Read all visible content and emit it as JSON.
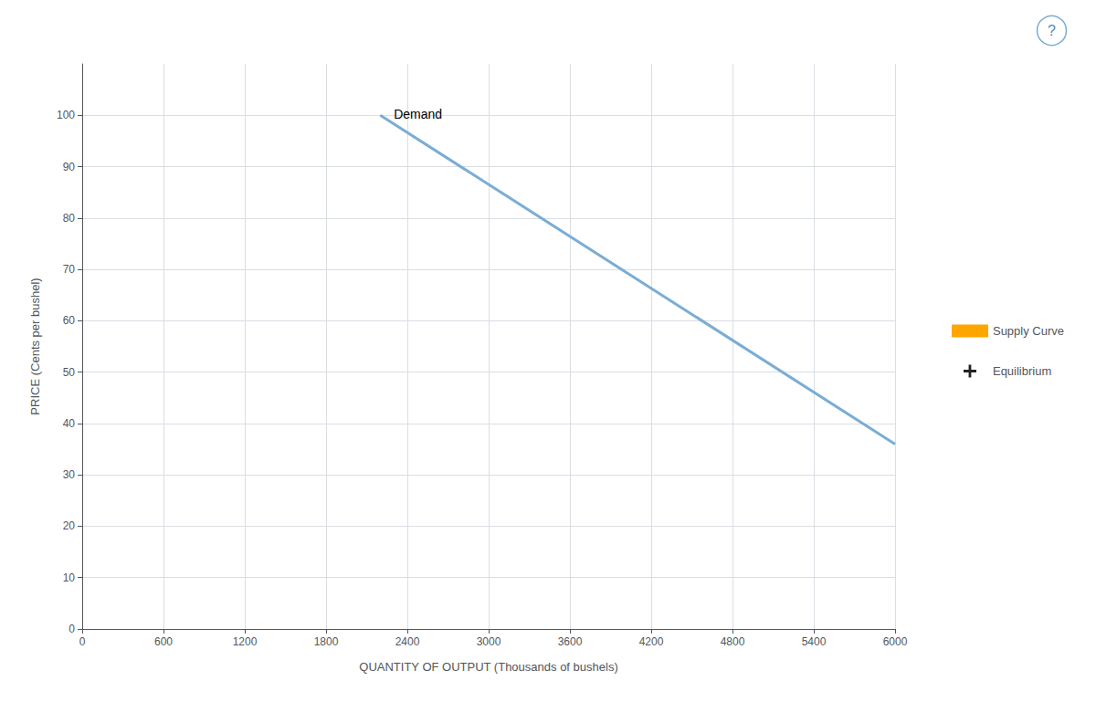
{
  "chart_data": {
    "type": "line",
    "xlabel": "QUANTITY OF OUTPUT (Thousands of bushels)",
    "ylabel": "PRICE (Cents per bushel)",
    "x": [
      2200,
      6000
    ],
    "series": [
      {
        "color": "#7aadd4",
        "values": [
          100,
          36
        ]
      },
      {
        "name": "Supply Curve",
        "color": "#FFA500",
        "marker": "square",
        "values": [
          null,
          null
        ]
      },
      {
        "name": "Equilibrium",
        "color": "#222222",
        "marker": "plus",
        "values": [
          null,
          null
        ]
      }
    ],
    "annotations": [
      {
        "text": "Demand",
        "x": 2300,
        "y": 99
      },
      {
        "text": "?"
      }
    ],
    "xlim": [
      0,
      6000
    ],
    "ylim": [
      0,
      110
    ],
    "xticks": [
      0,
      600,
      1200,
      1800,
      2400,
      3000,
      3600,
      4200,
      4800,
      5400,
      6000
    ],
    "yticks": [
      0,
      10,
      20,
      30,
      40,
      50,
      60,
      70,
      80,
      90,
      100
    ],
    "grid": true,
    "legend": "right"
  }
}
